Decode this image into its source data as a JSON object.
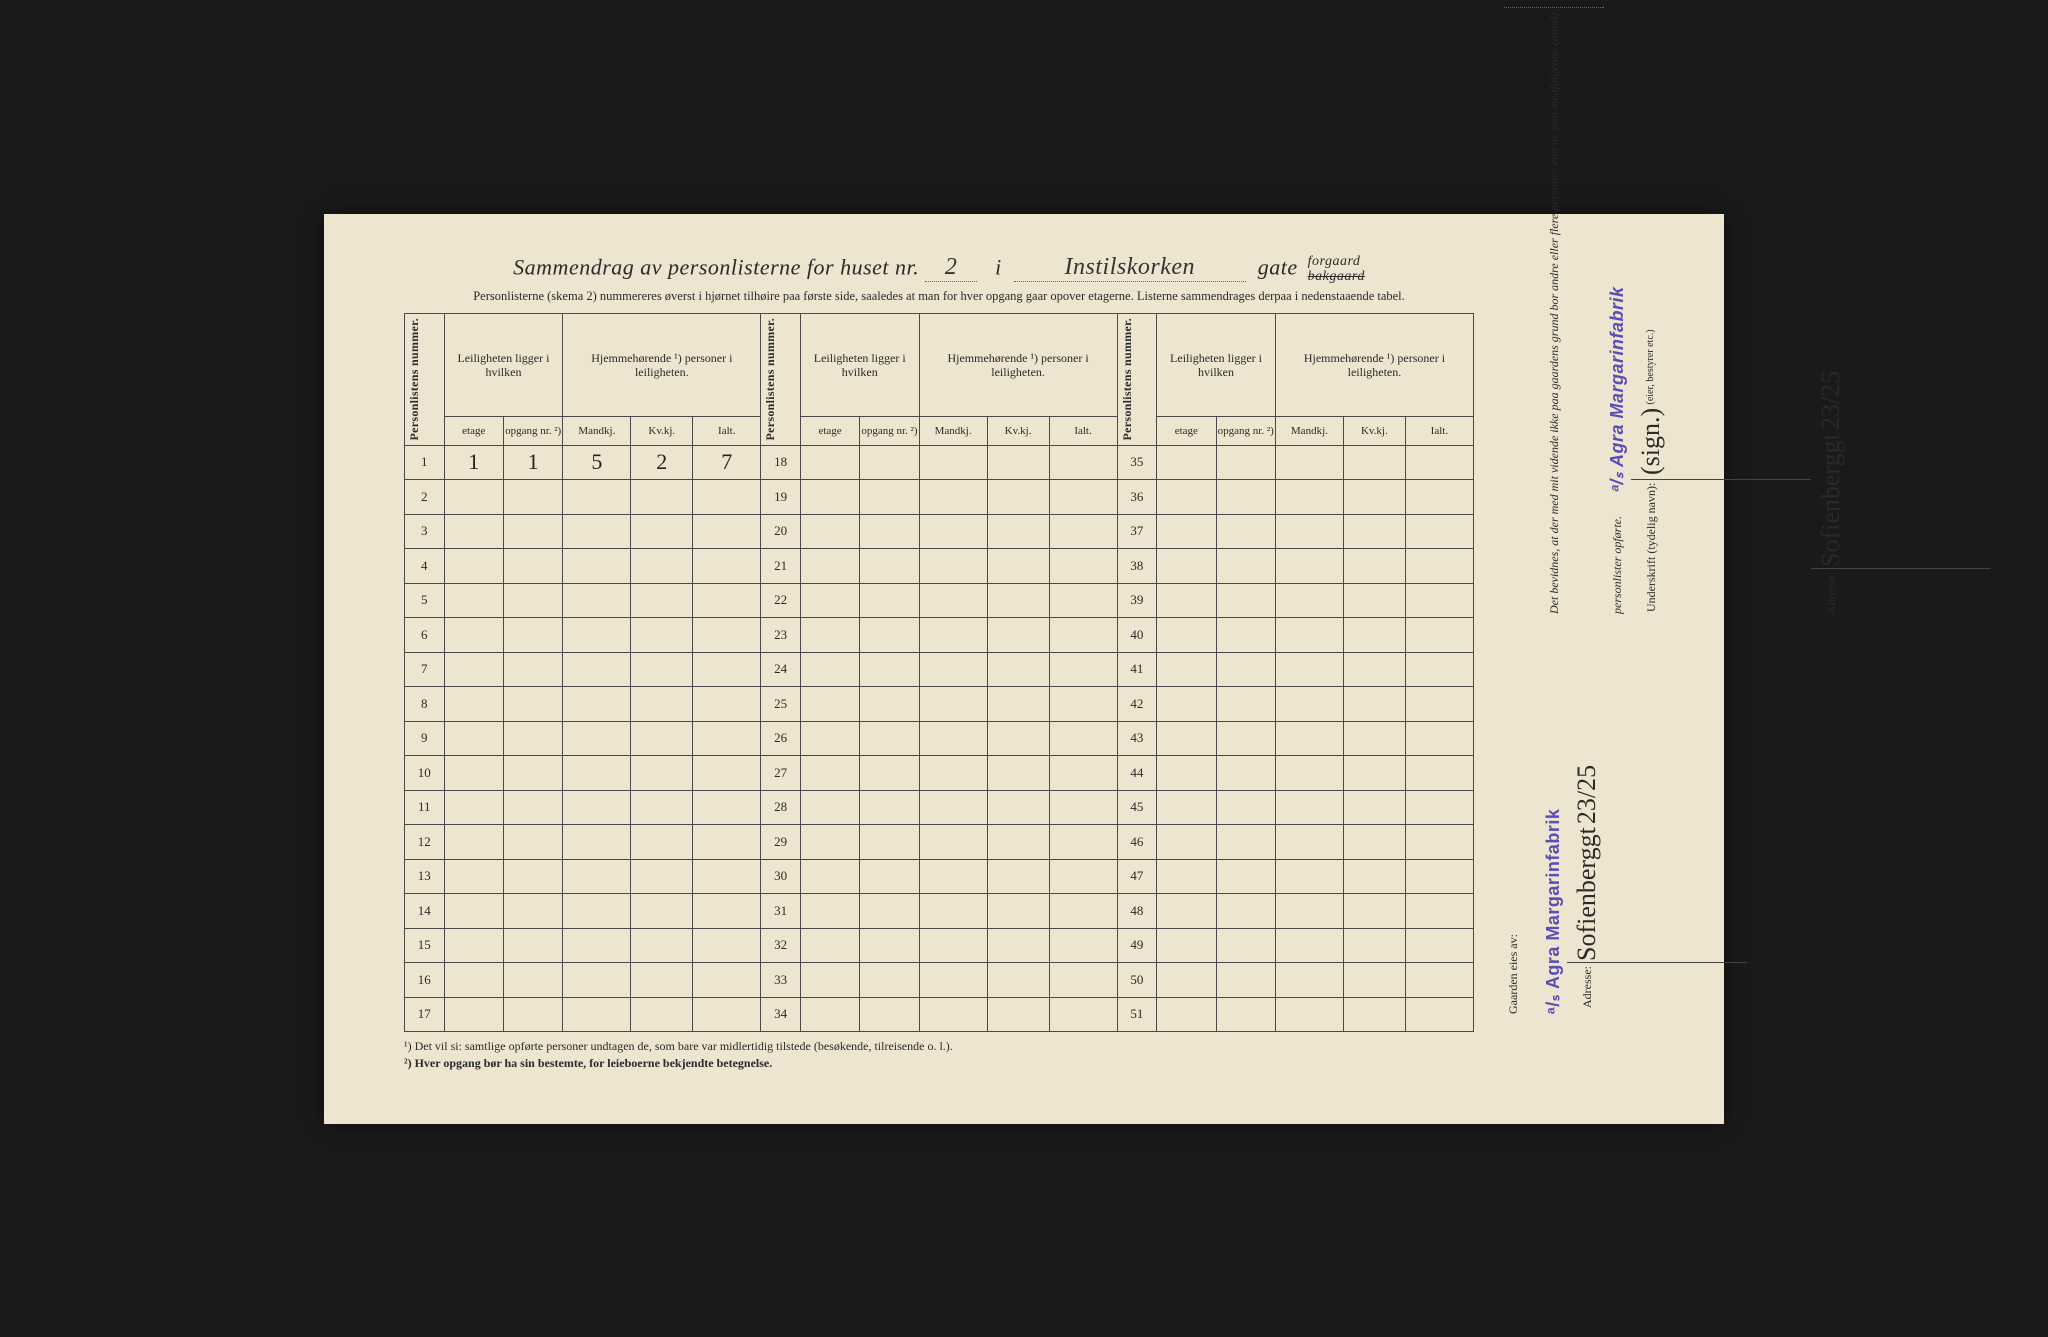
{
  "header": {
    "title_prefix": "Sammendrag av personlisterne for huset nr.",
    "house_nr": "2",
    "i_word": "i",
    "street": "Instilskorken",
    "gate_word": "gate",
    "forgaard": "forgaard",
    "bakgaard": "bakgaard",
    "subtitle": "Personlisterne (skema 2) nummereres øverst i hjørnet tilhøire paa første side, saaledes at man for hver opgang gaar opover etagerne.  Listerne sammendrages derpaa i nedenstaaende tabel."
  },
  "columns": {
    "personlistens": "Personlistens nummer.",
    "leiligheten_group": "Leiligheten ligger i hvilken",
    "hjemmehorende_group": "Hjemmehørende ¹) personer i leiligheten.",
    "etage": "etage",
    "opgang": "opgang nr. ²)",
    "mandkj": "Mandkj.",
    "kvkj": "Kv.kj.",
    "ialt": "Ialt."
  },
  "row_count_per_block": 17,
  "blocks": 3,
  "data_row": {
    "row": 1,
    "etage": "1",
    "opgang": "1",
    "mandkj": "5",
    "kvkj": "2",
    "ialt": "7"
  },
  "footnotes": {
    "fn1": "¹) Det vil si: samtlige opførte personer undtagen de, som bare var midlertidig tilstede (besøkende, tilreisende o. l.).",
    "fn2": "²) Hver opgang bør ha sin bestemte, for leieboerne bekjendte betegnelse."
  },
  "sidebar": {
    "bevid_text": "Det bevidnes, at der med mit vidende ikke paa gaardens grund bor andre eller flere personer end de paa medfølgende (antal):",
    "personlister": "personlister opførte.",
    "underskrift": "Underskrift (tydelig navn):",
    "eier_label": "(eier, bestyrer etc.)",
    "adresse": "Adresse:",
    "gaarden_eies": "Gaarden eies av:",
    "stamp": "ᵃ/ₛ Agra Margarinfabrik",
    "signature": "Sofienberggt",
    "addr_num": "23/25"
  },
  "colors": {
    "paper": "#ede5d0",
    "ink": "#2a2a2a",
    "border": "#4a4a4a",
    "stamp": "#5a4db5",
    "background": "#1a1a1a"
  }
}
